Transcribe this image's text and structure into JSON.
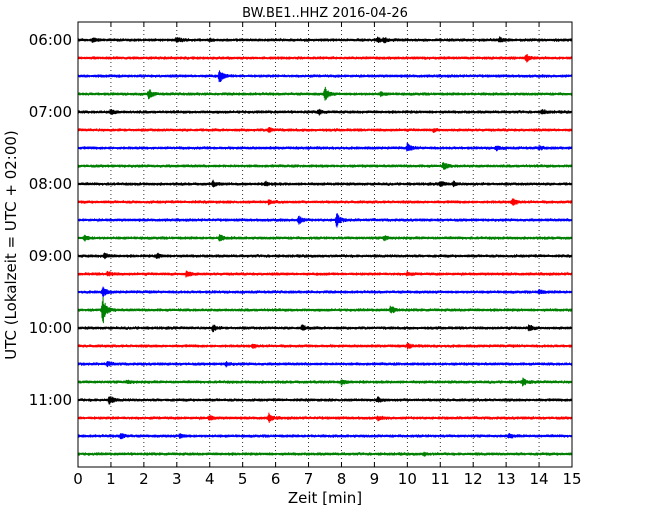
{
  "chart_data": {
    "type": "line",
    "title": "BW.BE1..HHZ 2016-04-26",
    "xlabel": "Zeit  [min]",
    "ylabel": "UTC (Lokalzeit = UTC + 02:00)",
    "xlim": [
      0,
      15
    ],
    "x_ticks": [
      "0",
      "1",
      "2",
      "3",
      "4",
      "5",
      "6",
      "7",
      "8",
      "9",
      "10",
      "11",
      "12",
      "13",
      "14",
      "15"
    ],
    "y_ticks": [
      "06:00",
      "07:00",
      "08:00",
      "09:00",
      "10:00",
      "11:00"
    ],
    "grid": "vertical dotted at each minute",
    "trace_colors": [
      "#000000",
      "#ff0000",
      "#0000ff",
      "#008000"
    ],
    "traces": [
      {
        "start": "06:00",
        "events": [
          {
            "t": 0.45,
            "a": 0.2
          },
          {
            "t": 3.0,
            "a": 0.3
          },
          {
            "t": 4.0,
            "a": 0.15
          },
          {
            "t": 9.1,
            "a": 0.3
          },
          {
            "t": 9.3,
            "a": 0.25
          },
          {
            "t": 12.8,
            "a": 0.25
          }
        ]
      },
      {
        "start": "06:15",
        "events": [
          {
            "t": 13.6,
            "a": 0.45
          }
        ]
      },
      {
        "start": "06:30",
        "events": [
          {
            "t": 4.3,
            "a": 0.75
          }
        ]
      },
      {
        "start": "06:45",
        "events": [
          {
            "t": 2.15,
            "a": 0.55
          },
          {
            "t": 7.5,
            "a": 0.75
          },
          {
            "t": 9.2,
            "a": 0.2
          }
        ]
      },
      {
        "start": "07:00",
        "events": [
          {
            "t": 1.0,
            "a": 0.3
          },
          {
            "t": 7.3,
            "a": 0.3
          },
          {
            "t": 14.1,
            "a": 0.25
          }
        ]
      },
      {
        "start": "07:15",
        "events": [
          {
            "t": 5.8,
            "a": 0.3
          },
          {
            "t": 10.8,
            "a": 0.15
          }
        ]
      },
      {
        "start": "07:30",
        "events": [
          {
            "t": 10.0,
            "a": 0.45
          },
          {
            "t": 12.7,
            "a": 0.25
          },
          {
            "t": 14.0,
            "a": 0.2
          }
        ]
      },
      {
        "start": "07:45",
        "events": [
          {
            "t": 11.1,
            "a": 0.45
          }
        ]
      },
      {
        "start": "08:00",
        "events": [
          {
            "t": 4.1,
            "a": 0.3
          },
          {
            "t": 5.7,
            "a": 0.25
          },
          {
            "t": 11.0,
            "a": 0.3
          },
          {
            "t": 11.4,
            "a": 0.25
          }
        ]
      },
      {
        "start": "08:15",
        "events": [
          {
            "t": 5.8,
            "a": 0.25
          },
          {
            "t": 13.2,
            "a": 0.5
          }
        ]
      },
      {
        "start": "08:30",
        "events": [
          {
            "t": 6.7,
            "a": 0.45
          },
          {
            "t": 7.85,
            "a": 0.8
          }
        ]
      },
      {
        "start": "08:45",
        "events": [
          {
            "t": 0.2,
            "a": 0.3
          },
          {
            "t": 4.3,
            "a": 0.35
          },
          {
            "t": 9.3,
            "a": 0.25
          }
        ]
      },
      {
        "start": "09:00",
        "events": [
          {
            "t": 0.8,
            "a": 0.3
          },
          {
            "t": 2.4,
            "a": 0.3
          }
        ]
      },
      {
        "start": "09:15",
        "events": [
          {
            "t": 0.9,
            "a": 0.3
          },
          {
            "t": 3.3,
            "a": 0.4
          },
          {
            "t": 10.0,
            "a": 0.2
          }
        ]
      },
      {
        "start": "09:30",
        "events": [
          {
            "t": 0.75,
            "a": 0.55
          },
          {
            "t": 14.0,
            "a": 0.25
          }
        ]
      },
      {
        "start": "09:45",
        "events": [
          {
            "t": 0.75,
            "a": 1.6
          },
          {
            "t": 9.5,
            "a": 0.45
          }
        ]
      },
      {
        "start": "10:00",
        "events": [
          {
            "t": 4.1,
            "a": 0.35
          },
          {
            "t": 6.8,
            "a": 0.3
          },
          {
            "t": 13.7,
            "a": 0.4
          }
        ]
      },
      {
        "start": "10:15",
        "events": [
          {
            "t": 5.3,
            "a": 0.25
          },
          {
            "t": 10.0,
            "a": 0.25
          }
        ]
      },
      {
        "start": "10:30",
        "events": [
          {
            "t": 0.9,
            "a": 0.25
          },
          {
            "t": 4.5,
            "a": 0.2
          }
        ]
      },
      {
        "start": "10:45",
        "events": [
          {
            "t": 1.5,
            "a": 0.2
          },
          {
            "t": 8.0,
            "a": 0.3
          },
          {
            "t": 13.5,
            "a": 0.4
          }
        ]
      },
      {
        "start": "11:00",
        "events": [
          {
            "t": 0.95,
            "a": 0.5
          },
          {
            "t": 9.1,
            "a": 0.25
          }
        ]
      },
      {
        "start": "11:15",
        "events": [
          {
            "t": 4.0,
            "a": 0.25
          },
          {
            "t": 5.8,
            "a": 0.45
          },
          {
            "t": 9.1,
            "a": 0.2
          }
        ]
      },
      {
        "start": "11:30",
        "events": [
          {
            "t": 1.3,
            "a": 0.35
          },
          {
            "t": 3.1,
            "a": 0.25
          },
          {
            "t": 13.1,
            "a": 0.2
          }
        ]
      },
      {
        "start": "11:45",
        "events": [
          {
            "t": 10.5,
            "a": 0.15
          }
        ]
      }
    ]
  }
}
